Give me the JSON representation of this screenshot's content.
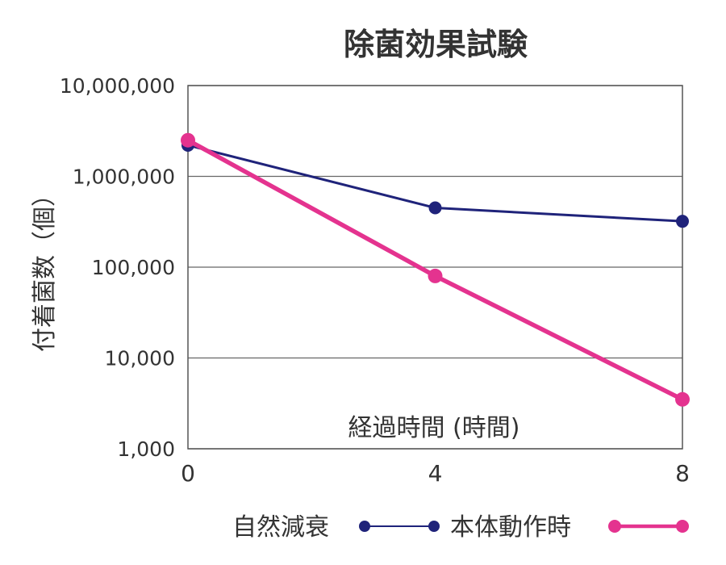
{
  "chart_data": {
    "type": "line",
    "title": "除菌効果試験",
    "xlabel": "経過時間 (時間)",
    "ylabel": "付着菌数（個）",
    "x": [
      0,
      4,
      8
    ],
    "x_tick_labels": [
      "0",
      "4",
      "8"
    ],
    "xlim": [
      0,
      8
    ],
    "yscale": "log",
    "ylim": [
      1000,
      10000000
    ],
    "y_ticks": [
      1000,
      10000,
      100000,
      1000000,
      10000000
    ],
    "y_tick_labels": [
      "1,000",
      "10,000",
      "100,000",
      "1,000,000",
      "10,000,000"
    ],
    "grid": true,
    "legend_position": "bottom",
    "series": [
      {
        "name": "自然減衰",
        "color": "#1f237a",
        "values": [
          2200000,
          450000,
          320000
        ]
      },
      {
        "name": "本体動作時",
        "color": "#e4338f",
        "values": [
          2500000,
          80000,
          3500
        ]
      }
    ]
  }
}
